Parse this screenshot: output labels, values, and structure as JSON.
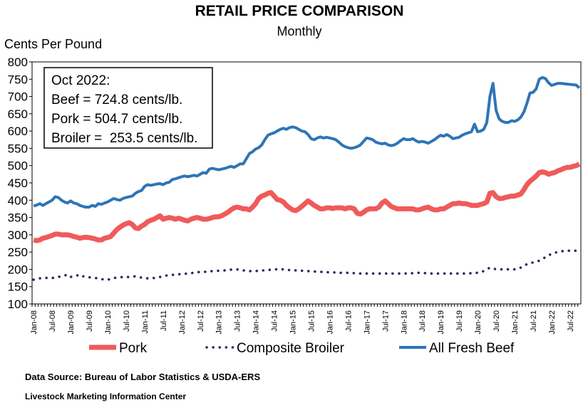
{
  "chart_data": {
    "type": "line",
    "title": "RETAIL PRICE COMPARISON",
    "subtitle": "Monthly",
    "y_label": "Cents Per Pound",
    "annotations": [
      "Oct 2022:",
      "Beef = 724.8 cents/lb.",
      "Pork = 504.7 cents/lb.",
      "Broiler =  253.5 cents/lb."
    ],
    "source": "Data Source: Bureau of Labor Statistics & USDA-ERS",
    "credit": "Livestock Marketing Information Center",
    "legend": "bottom",
    "grid": false,
    "ylim": [
      100,
      800
    ],
    "yticks": [
      100,
      150,
      200,
      250,
      300,
      350,
      400,
      450,
      500,
      550,
      600,
      650,
      700,
      750,
      800
    ],
    "categories": [
      "Jan-08",
      null,
      null,
      null,
      null,
      null,
      "Jul-08",
      null,
      null,
      null,
      null,
      null,
      "Jan-09",
      null,
      null,
      null,
      null,
      null,
      "Jul-09",
      null,
      null,
      null,
      null,
      null,
      "Jan-10",
      null,
      null,
      null,
      null,
      null,
      "Jul-10",
      null,
      null,
      null,
      null,
      null,
      "Jan-11",
      null,
      null,
      null,
      null,
      null,
      "Jul-11",
      null,
      null,
      null,
      null,
      null,
      "Jan-12",
      null,
      null,
      null,
      null,
      null,
      "Jul-12",
      null,
      null,
      null,
      null,
      null,
      "Jan-13",
      null,
      null,
      null,
      null,
      null,
      "Jul-13",
      null,
      null,
      null,
      null,
      null,
      "Jan-14",
      null,
      null,
      null,
      null,
      null,
      "Jul-14",
      null,
      null,
      null,
      null,
      null,
      "Jan-15",
      null,
      null,
      null,
      null,
      null,
      "Jul-15",
      null,
      null,
      null,
      null,
      null,
      "Jan-16",
      null,
      null,
      null,
      null,
      null,
      "Jul-16",
      null,
      null,
      null,
      null,
      null,
      "Jan-17",
      null,
      null,
      null,
      null,
      null,
      "Jul-17",
      null,
      null,
      null,
      null,
      null,
      "Jan-18",
      null,
      null,
      null,
      null,
      null,
      "Jul-18",
      null,
      null,
      null,
      null,
      null,
      "Jan-19",
      null,
      null,
      null,
      null,
      null,
      "Jul-19",
      null,
      null,
      null,
      null,
      null,
      "Jan-20",
      null,
      null,
      null,
      null,
      null,
      "Jul-20",
      null,
      null,
      null,
      null,
      null,
      "Jan-21",
      null,
      null,
      null,
      null,
      null,
      "Jul-21",
      null,
      null,
      null,
      null,
      null,
      "Jan-22",
      null,
      null,
      null,
      null,
      null,
      "Jul-22",
      null,
      null,
      null
    ],
    "series": [
      {
        "name": "Pork",
        "color": "#f05a5a",
        "style": "solid",
        "values": [
          285,
          283,
          285,
          290,
          292,
          295,
          298,
          302,
          302,
          300,
          300,
          300,
          298,
          295,
          293,
          290,
          292,
          293,
          292,
          290,
          288,
          285,
          285,
          290,
          292,
          295,
          305,
          315,
          322,
          328,
          332,
          335,
          330,
          320,
          318,
          325,
          330,
          338,
          342,
          345,
          350,
          355,
          345,
          348,
          350,
          348,
          345,
          348,
          345,
          342,
          340,
          345,
          348,
          350,
          348,
          345,
          345,
          347,
          350,
          352,
          352,
          355,
          360,
          365,
          372,
          378,
          380,
          378,
          375,
          375,
          372,
          380,
          390,
          405,
          412,
          415,
          420,
          422,
          412,
          402,
          400,
          395,
          385,
          378,
          372,
          370,
          375,
          382,
          390,
          398,
          392,
          385,
          380,
          375,
          375,
          378,
          378,
          376,
          378,
          378,
          378,
          375,
          378,
          378,
          375,
          362,
          360,
          365,
          372,
          375,
          375,
          375,
          380,
          392,
          398,
          390,
          382,
          378,
          375,
          375,
          375,
          375,
          375,
          375,
          372,
          372,
          375,
          378,
          380,
          375,
          372,
          372,
          375,
          375,
          380,
          385,
          390,
          390,
          392,
          390,
          390,
          388,
          385,
          385,
          385,
          388,
          390,
          395,
          420,
          422,
          410,
          405,
          405,
          408,
          410,
          412,
          412,
          415,
          418,
          430,
          445,
          455,
          462,
          470,
          480,
          482,
          480,
          475,
          478,
          480,
          485,
          488,
          492,
          495,
          495,
          498,
          500,
          504.7
        ]
      },
      {
        "name": "Composite Broiler",
        "color": "#1f2d5a",
        "style": "dotted",
        "values": [
          170,
          172,
          174,
          175,
          175,
          176,
          175,
          176,
          178,
          180,
          182,
          185,
          178,
          180,
          182,
          185,
          180,
          178,
          177,
          176,
          175,
          174,
          172,
          170,
          170,
          172,
          175,
          176,
          177,
          178,
          178,
          178,
          179,
          180,
          178,
          176,
          175,
          174,
          174,
          175,
          176,
          178,
          180,
          182,
          183,
          184,
          185,
          186,
          186,
          187,
          188,
          189,
          190,
          192,
          192,
          193,
          193,
          194,
          195,
          195,
          196,
          196,
          197,
          198,
          199,
          200,
          200,
          198,
          197,
          196,
          195,
          195,
          195,
          196,
          197,
          197,
          198,
          199,
          200,
          200,
          200,
          200,
          199,
          198,
          198,
          197,
          196,
          196,
          195,
          195,
          194,
          194,
          193,
          193,
          192,
          192,
          191,
          191,
          191,
          190,
          190,
          190,
          190,
          189,
          189,
          188,
          188,
          188,
          188,
          188,
          188,
          188,
          188,
          188,
          188,
          188,
          188,
          188,
          188,
          188,
          188,
          188,
          188,
          189,
          190,
          190,
          190,
          189,
          189,
          188,
          188,
          188,
          188,
          188,
          188,
          188,
          188,
          188,
          188,
          188,
          188,
          188,
          189,
          190,
          190,
          192,
          195,
          200,
          205,
          203,
          200,
          200,
          200,
          200,
          200,
          200,
          200,
          202,
          205,
          210,
          215,
          218,
          220,
          222,
          225,
          230,
          235,
          240,
          245,
          248,
          250,
          252,
          253,
          254,
          254,
          254,
          254,
          253.5
        ]
      },
      {
        "name": "All Fresh Beef",
        "color": "#2e75b6",
        "style": "solid",
        "values": [
          383,
          386,
          390,
          385,
          390,
          395,
          400,
          410,
          408,
          400,
          395,
          392,
          398,
          392,
          390,
          385,
          382,
          380,
          380,
          385,
          382,
          390,
          388,
          392,
          395,
          400,
          405,
          402,
          400,
          405,
          408,
          410,
          412,
          420,
          425,
          428,
          440,
          445,
          443,
          445,
          447,
          448,
          445,
          450,
          452,
          460,
          462,
          465,
          468,
          470,
          468,
          470,
          472,
          470,
          475,
          480,
          478,
          490,
          492,
          490,
          488,
          490,
          492,
          495,
          498,
          495,
          500,
          505,
          505,
          520,
          535,
          540,
          548,
          552,
          560,
          575,
          588,
          592,
          595,
          600,
          605,
          608,
          605,
          610,
          612,
          610,
          605,
          600,
          598,
          590,
          578,
          575,
          580,
          583,
          580,
          582,
          580,
          578,
          575,
          568,
          560,
          555,
          552,
          550,
          552,
          555,
          560,
          570,
          580,
          578,
          575,
          568,
          565,
          563,
          565,
          560,
          558,
          560,
          565,
          572,
          578,
          575,
          575,
          578,
          572,
          568,
          570,
          568,
          565,
          570,
          575,
          582,
          588,
          585,
          590,
          585,
          578,
          580,
          582,
          588,
          592,
          595,
          598,
          620,
          598,
          600,
          605,
          625,
          700,
          738,
          660,
          635,
          628,
          625,
          625,
          630,
          628,
          632,
          640,
          655,
          680,
          710,
          712,
          722,
          750,
          755,
          752,
          740,
          732,
          735,
          738,
          738,
          737,
          736,
          735,
          734,
          733,
          724.8
        ]
      }
    ]
  }
}
